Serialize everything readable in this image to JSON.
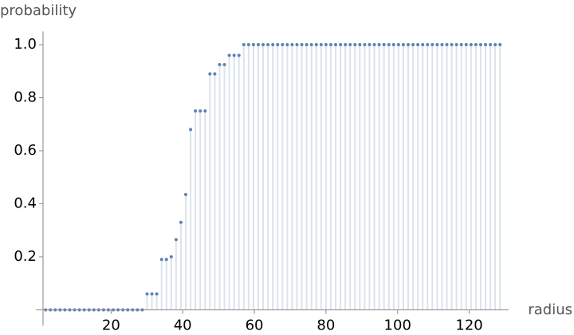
{
  "chart_data": {
    "type": "stem",
    "ylabel": "probability",
    "xlabel": "radius",
    "x": [
      1.7,
      3.05,
      4.4,
      5.75,
      7.1,
      8.45,
      9.8,
      11.15,
      12.5,
      13.85,
      15.2,
      16.55,
      17.9,
      19.25,
      20.6,
      21.95,
      23.3,
      24.65,
      26,
      27.35,
      28.7,
      30.05,
      31.4,
      32.75,
      34.1,
      35.45,
      36.8,
      38.15,
      39.5,
      40.85,
      42.2,
      43.55,
      44.9,
      46.25,
      47.6,
      48.95,
      50.3,
      51.65,
      53,
      54.35,
      55.7,
      57.05,
      58.4,
      59.75,
      61.1,
      62.45,
      63.8,
      65.15,
      66.5,
      67.85,
      69.2,
      70.55,
      71.9,
      73.25,
      74.6,
      75.95,
      77.3,
      78.65,
      80,
      81.35,
      82.7,
      84.05,
      85.4,
      86.75,
      88.1,
      89.45,
      90.8,
      92.15,
      93.5,
      94.85,
      96.2,
      97.55,
      98.9,
      100.25,
      101.6,
      102.95,
      104.3,
      105.65,
      107,
      108.35,
      109.7,
      111.05,
      112.4,
      113.75,
      115.1,
      116.45,
      117.8,
      119.15,
      120.5,
      121.85,
      123.2,
      124.55,
      125.9,
      127.25,
      128.6
    ],
    "values": [
      0,
      0,
      0,
      0,
      0,
      0,
      0,
      0,
      0,
      0,
      0,
      0,
      0,
      0,
      0,
      0,
      0,
      0,
      0,
      0,
      0,
      0.06,
      0.06,
      0.06,
      0.19,
      0.19,
      0.2,
      0.265,
      0.33,
      0.435,
      0.68,
      0.75,
      0.75,
      0.75,
      0.89,
      0.89,
      0.925,
      0.925,
      0.96,
      0.96,
      0.96,
      1,
      1,
      1,
      1,
      1,
      1,
      1,
      1,
      1,
      1,
      1,
      1,
      1,
      1,
      1,
      1,
      1,
      1,
      1,
      1,
      1,
      1,
      1,
      1,
      1,
      1,
      1,
      1,
      1,
      1,
      1,
      1,
      1,
      1,
      1,
      1,
      1,
      1,
      1,
      1,
      1,
      1,
      1,
      1,
      1,
      1,
      1,
      1,
      1,
      1,
      1,
      1,
      1,
      1
    ],
    "color": "#5e81b5",
    "stem_color": "#dbe3ec",
    "xlim": [
      -1,
      131
    ],
    "ylim": [
      -0.06,
      1.05
    ],
    "axes_origin": [
      1,
      0
    ],
    "xticks": [
      20,
      40,
      60,
      80,
      100,
      120
    ],
    "yticks": [
      0.2,
      0.4,
      0.6,
      0.8,
      {
        "value": 1,
        "label": "1.0"
      }
    ]
  }
}
